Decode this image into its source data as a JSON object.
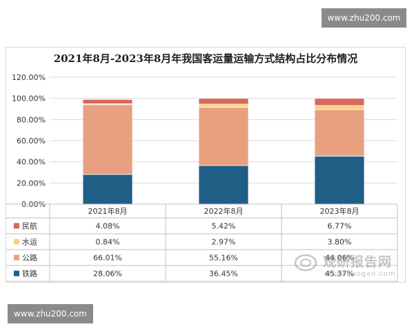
{
  "watermark_top": "www.zhu200.com",
  "watermark_bottom": "www.zhu200.com",
  "logo": {
    "cn": "观研报告网",
    "en": "chinabaogao.com"
  },
  "colors": {
    "铁路": "#1f5f86",
    "公路": "#e8a080",
    "水运": "#f7d08a",
    "民航": "#d9675a",
    "grid": "#d9d9d9",
    "axis": "#bfbfbf"
  },
  "chart_data": {
    "type": "bar",
    "stacked": true,
    "title": "2021年8月-2023年8月年我国客运量运输方式结构占比分布情况",
    "categories": [
      "2021年8月",
      "2022年8月",
      "2023年8月"
    ],
    "series": [
      {
        "name": "铁路",
        "values": [
          28.06,
          36.45,
          45.37
        ],
        "labels": [
          "28.06%",
          "36.45%",
          "45.37%"
        ]
      },
      {
        "name": "公路",
        "values": [
          66.01,
          55.16,
          44.06
        ],
        "labels": [
          "66.01%",
          "55.16%",
          "44.06%"
        ]
      },
      {
        "name": "水运",
        "values": [
          0.84,
          2.97,
          3.8
        ],
        "labels": [
          "0.84%",
          "2.97%",
          "3.80%"
        ]
      },
      {
        "name": "民航",
        "values": [
          4.08,
          5.42,
          6.77
        ],
        "labels": [
          "4.08%",
          "5.42%",
          "6.77%"
        ]
      }
    ],
    "table_row_order": [
      "民航",
      "水运",
      "公路",
      "铁路"
    ],
    "ylim": [
      0,
      120
    ],
    "yticks": [
      "0.00%",
      "20.00%",
      "40.00%",
      "60.00%",
      "80.00%",
      "100.00%",
      "120.00%"
    ],
    "grid": true,
    "data_table": true
  }
}
